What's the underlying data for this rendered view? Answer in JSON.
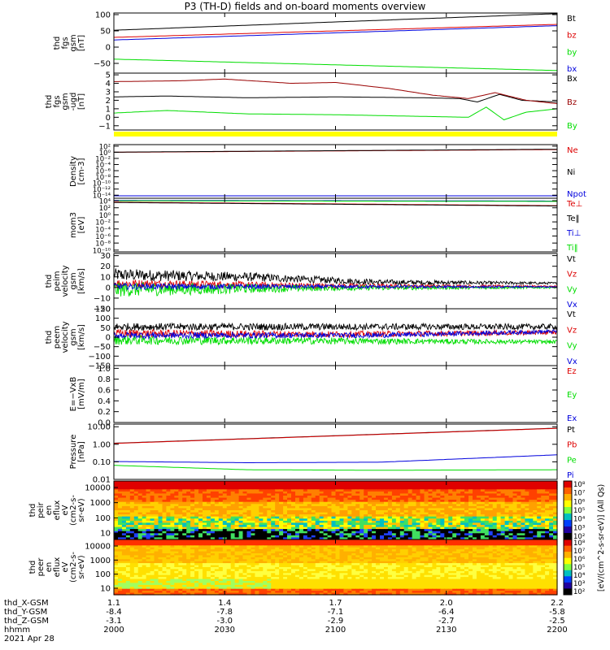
{
  "title": "P3 (TH-D) fields and on-board moments overview",
  "date_label": "2021 Apr 28",
  "colors": {
    "black": "#000000",
    "red": "#dd0000",
    "darkred": "#990000",
    "green": "#00dd00",
    "blue": "#0000dd",
    "yellow": "#ffff00"
  },
  "chart_data": [
    {
      "id": "fgs",
      "type": "line",
      "ylabel": [
        "thd",
        "fgs",
        "gsm",
        "[nT]"
      ],
      "yticks": [
        "100",
        "50",
        "0",
        "−50"
      ],
      "ylim": [
        -80,
        105
      ],
      "series": [
        {
          "name": "Bt",
          "color": "#000000",
          "points": [
            [
              0,
              52
            ],
            [
              1,
              103
            ]
          ]
        },
        {
          "name": "bz",
          "color": "#dd0000",
          "points": [
            [
              0,
              30
            ],
            [
              1,
              70
            ]
          ]
        },
        {
          "name": "by",
          "color": "#00dd00",
          "points": [
            [
              0,
              -37
            ],
            [
              1,
              -72
            ]
          ]
        },
        {
          "name": "bx",
          "color": "#0000dd",
          "points": [
            [
              0,
              22
            ],
            [
              1,
              66
            ]
          ]
        }
      ]
    },
    {
      "id": "fgs-lo",
      "type": "line",
      "ylabel": [
        "thd",
        "fgs",
        "gsm",
        "-ugd",
        "[nT]"
      ],
      "yticks": [
        "5",
        "4",
        "3",
        "2",
        "1",
        "0",
        "−1"
      ],
      "ylim": [
        -1.5,
        5.2
      ],
      "series": [
        {
          "name": "Bx",
          "color": "#000000",
          "points": [
            [
              0,
              2.4
            ],
            [
              0.12,
              2.5
            ],
            [
              0.3,
              2.3
            ],
            [
              0.5,
              2.4
            ],
            [
              0.7,
              2.3
            ],
            [
              0.78,
              2.2
            ],
            [
              0.82,
              1.8
            ],
            [
              0.87,
              2.7
            ],
            [
              0.92,
              2.0
            ],
            [
              1,
              1.8
            ]
          ]
        },
        {
          "name": "Bz",
          "color": "#990000",
          "points": [
            [
              0,
              4.2
            ],
            [
              0.15,
              4.3
            ],
            [
              0.25,
              4.5
            ],
            [
              0.4,
              4.0
            ],
            [
              0.5,
              4.1
            ],
            [
              0.62,
              3.4
            ],
            [
              0.72,
              2.6
            ],
            [
              0.8,
              2.2
            ],
            [
              0.86,
              2.9
            ],
            [
              0.93,
              2.0
            ],
            [
              1,
              1.6
            ]
          ]
        },
        {
          "name": "By",
          "color": "#00dd00",
          "points": [
            [
              0,
              0.5
            ],
            [
              0.12,
              0.8
            ],
            [
              0.3,
              0.4
            ],
            [
              0.5,
              0.3
            ],
            [
              0.7,
              0.1
            ],
            [
              0.8,
              0.0
            ],
            [
              0.84,
              1.2
            ],
            [
              0.88,
              -0.3
            ],
            [
              0.93,
              0.6
            ],
            [
              1,
              1.0
            ]
          ]
        }
      ]
    },
    {
      "id": "density",
      "type": "line",
      "ylabel": [
        "Density",
        "[cm-3]"
      ],
      "yticks": [
        "10²",
        "10⁰",
        "10⁻²",
        "10⁻⁴",
        "10⁻⁶",
        "10⁻⁸",
        "10⁻¹⁰",
        "10⁻¹²",
        "10⁻¹⁴"
      ],
      "ylim": [
        -15,
        2.5
      ],
      "series": [
        {
          "name": "Ne",
          "color": "#dd0000",
          "points": [
            [
              0,
              0.0
            ],
            [
              1,
              0.9
            ]
          ]
        },
        {
          "name": "Ni",
          "color": "#000000",
          "points": [
            [
              0,
              0.05
            ],
            [
              1,
              1.0
            ]
          ]
        },
        {
          "name": "Npot",
          "color": "#0000dd",
          "points": [
            [
              0,
              -14.2
            ],
            [
              1,
              -14.2
            ]
          ]
        }
      ]
    },
    {
      "id": "temp",
      "type": "line",
      "ylabel": [
        "mom3",
        "[eV]"
      ],
      "yticks": [
        "10⁴",
        "10²",
        "10⁰",
        "10⁻²",
        "10⁻⁴",
        "10⁻⁶",
        "10⁻⁸",
        "10⁻¹⁰"
      ],
      "ylim": [
        -10.5,
        4.7
      ],
      "series": [
        {
          "name": "Te⊥",
          "color": "#dd0000",
          "points": [
            [
              0,
              3.6
            ],
            [
              1,
              2.6
            ]
          ]
        },
        {
          "name": "Te‖",
          "color": "#000000",
          "points": [
            [
              0,
              3.5
            ],
            [
              1,
              2.5
            ]
          ]
        },
        {
          "name": "Ti⊥",
          "color": "#0000dd",
          "points": [
            [
              0,
              4.1
            ],
            [
              1,
              3.9
            ]
          ]
        },
        {
          "name": "Ti‖",
          "color": "#00dd00",
          "points": [
            [
              0,
              4.0
            ],
            [
              1,
              3.8
            ]
          ]
        }
      ]
    },
    {
      "id": "peim",
      "type": "line",
      "ylabel": [
        "thd",
        "peim",
        "velocity",
        "gsm",
        "[km/s]"
      ],
      "yticks": [
        "30",
        "20",
        "10",
        "0",
        "−10",
        "−20"
      ],
      "ylim": [
        -20,
        32
      ],
      "series": [
        {
          "name": "Vt",
          "color": "#000000",
          "base": [
            [
              0,
              12
            ],
            [
              0.3,
              10
            ],
            [
              0.6,
              5
            ],
            [
              1,
              4
            ]
          ],
          "noise": [
            [
              0,
              6
            ],
            [
              0.5,
              3
            ],
            [
              1,
              1
            ]
          ]
        },
        {
          "name": "Vz",
          "color": "#dd0000",
          "base": [
            [
              0,
              4
            ],
            [
              0.5,
              1.5
            ],
            [
              1,
              1
            ]
          ],
          "noise": [
            [
              0,
              4
            ],
            [
              1,
              0.8
            ]
          ]
        },
        {
          "name": "Vy",
          "color": "#00dd00",
          "base": [
            [
              0,
              -2
            ],
            [
              0.5,
              -0.5
            ],
            [
              1,
              0
            ]
          ],
          "noise": [
            [
              0,
              7
            ],
            [
              0.5,
              2.5
            ],
            [
              1,
              0.8
            ]
          ]
        },
        {
          "name": "Vx",
          "color": "#0000dd",
          "base": [
            [
              0,
              1
            ],
            [
              1,
              0.5
            ]
          ],
          "noise": [
            [
              0,
              3
            ],
            [
              1,
              0.6
            ]
          ]
        }
      ]
    },
    {
      "id": "peem",
      "type": "line",
      "ylabel": [
        "thd",
        "peem",
        "velocity",
        "gsm",
        "[km/s]"
      ],
      "yticks": [
        "150",
        "100",
        "50",
        "0",
        "−50",
        "−100",
        "−150"
      ],
      "ylim": [
        -150,
        150
      ],
      "series": [
        {
          "name": "Vt",
          "color": "#000000",
          "base": [
            [
              0,
              55
            ],
            [
              0.5,
              55
            ],
            [
              1,
              55
            ]
          ],
          "noise": [
            [
              0,
              20
            ],
            [
              1,
              15
            ]
          ]
        },
        {
          "name": "Vz",
          "color": "#dd0000",
          "base": [
            [
              0,
              20
            ],
            [
              0.5,
              15
            ],
            [
              1,
              25
            ]
          ],
          "noise": [
            [
              0,
              22
            ],
            [
              1,
              12
            ]
          ]
        },
        {
          "name": "Vy",
          "color": "#00dd00",
          "base": [
            [
              0,
              -15
            ],
            [
              0.5,
              -20
            ],
            [
              1,
              -25
            ]
          ],
          "noise": [
            [
              0,
              25
            ],
            [
              1,
              10
            ]
          ]
        },
        {
          "name": "Vx",
          "color": "#0000dd",
          "base": [
            [
              0,
              10
            ],
            [
              0.6,
              10
            ],
            [
              1,
              30
            ]
          ],
          "noise": [
            [
              0,
              18
            ],
            [
              1,
              10
            ]
          ]
        }
      ]
    },
    {
      "id": "efield",
      "type": "line",
      "ylabel": [
        "E=−VxB",
        "[mV/m]"
      ],
      "yticks": [
        "1.0",
        "0.8",
        "0.6",
        "0.4",
        "0.2",
        "0.0"
      ],
      "ylim": [
        0,
        1.05
      ],
      "series": [
        {
          "name": "Ez",
          "color": "#dd0000",
          "points": []
        },
        {
          "name": "Ey",
          "color": "#00dd00",
          "points": []
        },
        {
          "name": "Ex",
          "color": "#0000dd",
          "points": []
        }
      ]
    },
    {
      "id": "pressure",
      "type": "line",
      "ylabel": [
        "Pressure",
        "[nPa]"
      ],
      "yticks": [
        "10.00",
        "1.00",
        "0.10",
        "0.01"
      ],
      "ylim": [
        -2,
        1.15
      ],
      "log": true,
      "series": [
        {
          "name": "Pt",
          "color": "#000000",
          "points": [
            [
              0,
              0.06
            ],
            [
              1,
              0.92
            ]
          ]
        },
        {
          "name": "Pb",
          "color": "#dd0000",
          "points": [
            [
              0,
              0.05
            ],
            [
              1,
              0.91
            ]
          ]
        },
        {
          "name": "Pe",
          "color": "#00dd00",
          "points": [
            [
              0,
              -1.2
            ],
            [
              0.3,
              -1.45
            ],
            [
              0.6,
              -1.48
            ],
            [
              1,
              -1.45
            ]
          ]
        },
        {
          "name": "Pi",
          "color": "#0000dd",
          "points": [
            [
              0,
              -0.98
            ],
            [
              0.3,
              -1.05
            ],
            [
              0.6,
              -1.02
            ],
            [
              1,
              -0.6
            ]
          ]
        }
      ]
    },
    {
      "id": "peir",
      "type": "heatmap",
      "ylabel": [
        "thd",
        "peir",
        "en",
        "eflux",
        "eV",
        "(cm2-s-",
        "sr-eV)"
      ],
      "yticks": [
        "10000",
        "1000",
        "100",
        "10"
      ]
    },
    {
      "id": "peer",
      "type": "heatmap",
      "ylabel": [
        "thd",
        "peer",
        "en",
        "eflux",
        "eV",
        "(cm2-s-",
        "sr-eV)"
      ],
      "yticks": [
        "10000",
        "1000",
        "100",
        "10"
      ]
    }
  ],
  "colorbars": {
    "upper_ticks": [
      "10⁸",
      "10⁷",
      "10⁶",
      "10⁵",
      "10⁴",
      "10³",
      "10²"
    ],
    "lower_ticks": [
      "10⁸",
      "10⁷",
      "10⁶",
      "10⁵",
      "10⁴",
      "10³",
      "10²"
    ],
    "label": "[eV/(cm^2-s-sr-eV)] (All Qs)"
  },
  "xaxis": {
    "tick_count": 5,
    "rows": [
      {
        "name": "thd_X-GSM",
        "values": [
          "1.1",
          "1.4",
          "1.7",
          "2.0",
          "2.2"
        ]
      },
      {
        "name": "thd_Y-GSM",
        "values": [
          "-8.4",
          "-7.8",
          "-7.1",
          "-6.4",
          "-5.8"
        ]
      },
      {
        "name": "thd_Z-GSM",
        "values": [
          "-3.1",
          "-3.0",
          "-2.9",
          "-2.7",
          "-2.5"
        ]
      },
      {
        "name": "hhmm",
        "values": [
          "2000",
          "2030",
          "2100",
          "2130",
          "2200"
        ]
      }
    ]
  }
}
